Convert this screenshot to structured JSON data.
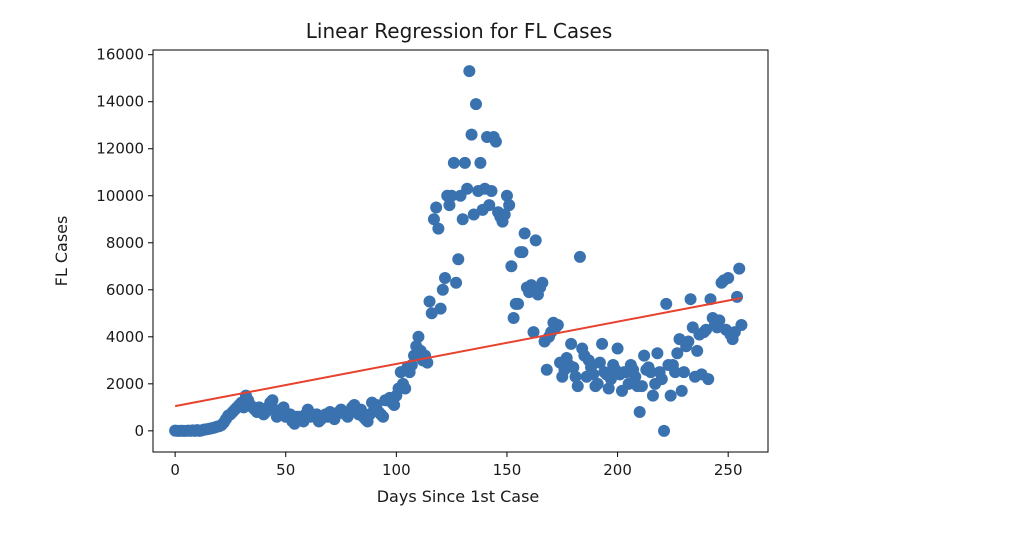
{
  "chart_data": {
    "type": "scatter",
    "title": "Linear Regression for FL Cases",
    "xlabel": "Days Since 1st Case",
    "ylabel": "FL Cases",
    "xlim": [
      -10,
      268
    ],
    "ylim": [
      -900,
      16200
    ],
    "xticks": [
      0,
      50,
      100,
      150,
      200,
      250
    ],
    "yticks": [
      0,
      2000,
      4000,
      6000,
      8000,
      10000,
      12000,
      14000,
      16000
    ],
    "grid": false,
    "colors": {
      "points": "#3a72b0",
      "regression": "#e8412e",
      "axes": "#000000"
    },
    "series": [
      {
        "kind": "scatter",
        "x": [
          0,
          1,
          2,
          3,
          4,
          5,
          6,
          7,
          8,
          9,
          10,
          11,
          12,
          13,
          14,
          15,
          16,
          17,
          18,
          19,
          20,
          21,
          22,
          23,
          24,
          25,
          26,
          27,
          28,
          29,
          30,
          31,
          32,
          33,
          34,
          35,
          36,
          37,
          38,
          39,
          40,
          41,
          42,
          43,
          44,
          45,
          46,
          47,
          48,
          49,
          50,
          51,
          52,
          53,
          54,
          55,
          56,
          57,
          58,
          59,
          60,
          61,
          62,
          63,
          64,
          65,
          66,
          67,
          68,
          69,
          70,
          71,
          72,
          73,
          74,
          75,
          76,
          77,
          78,
          79,
          80,
          81,
          82,
          83,
          84,
          85,
          86,
          87,
          88,
          89,
          90,
          91,
          92,
          93,
          94,
          95,
          96,
          97,
          98,
          99,
          100,
          101,
          102,
          103,
          104,
          105,
          106,
          107,
          108,
          109,
          110,
          111,
          112,
          113,
          114,
          115,
          116,
          117,
          118,
          119,
          120,
          121,
          122,
          123,
          124,
          125,
          126,
          127,
          128,
          129,
          130,
          131,
          132,
          133,
          134,
          135,
          136,
          137,
          138,
          139,
          140,
          141,
          142,
          143,
          144,
          145,
          146,
          147,
          148,
          149,
          150,
          151,
          152,
          153,
          154,
          155,
          156,
          157,
          158,
          159,
          160,
          161,
          162,
          163,
          164,
          165,
          166,
          167,
          168,
          169,
          170,
          171,
          172,
          173,
          174,
          175,
          176,
          177,
          178,
          179,
          180,
          181,
          182,
          183,
          184,
          185,
          186,
          187,
          188,
          189,
          190,
          191,
          192,
          193,
          194,
          195,
          196,
          197,
          198,
          199,
          200,
          201,
          202,
          203,
          204,
          205,
          206,
          207,
          208,
          209,
          210,
          211,
          212,
          213,
          214,
          215,
          216,
          217,
          218,
          219,
          220,
          221,
          222,
          223,
          224,
          225,
          226,
          227,
          228,
          229,
          230,
          231,
          232,
          233,
          234,
          235,
          236,
          237,
          238,
          239,
          240,
          241,
          242,
          243,
          244,
          245,
          246,
          247,
          248,
          249,
          250,
          251,
          252,
          253,
          254,
          255,
          256
        ],
        "y": [
          10,
          0,
          0,
          5,
          0,
          0,
          10,
          0,
          20,
          0,
          30,
          0,
          20,
          50,
          60,
          80,
          100,
          120,
          150,
          180,
          200,
          250,
          350,
          500,
          650,
          700,
          800,
          900,
          1000,
          1100,
          1200,
          1000,
          1500,
          1300,
          1100,
          1000,
          900,
          800,
          1000,
          900,
          700,
          800,
          1000,
          1200,
          1300,
          900,
          600,
          700,
          800,
          1000,
          600,
          700,
          700,
          400,
          300,
          600,
          600,
          500,
          400,
          700,
          900,
          600,
          700,
          600,
          700,
          400,
          500,
          600,
          700,
          600,
          800,
          600,
          500,
          700,
          800,
          900,
          800,
          700,
          600,
          800,
          1000,
          1100,
          800,
          700,
          900,
          600,
          500,
          400,
          700,
          1200,
          900,
          1100,
          800,
          700,
          600,
          1300,
          1300,
          1400,
          1200,
          1100,
          1500,
          1800,
          2500,
          2000,
          1800,
          2700,
          2500,
          2800,
          3200,
          3600,
          4000,
          3400,
          3000,
          3200,
          2900,
          5500,
          5000,
          9000,
          9500,
          8600,
          5200,
          6000,
          6500,
          10000,
          9600,
          10000,
          11400,
          6300,
          7300,
          10000,
          9000,
          11400,
          10300,
          15300,
          12600,
          9200,
          13900,
          10200,
          11400,
          9400,
          10300,
          12500,
          9600,
          10200,
          12500,
          12300,
          9300,
          9100,
          8900,
          9200,
          10000,
          9600,
          7000,
          4800,
          5400,
          5400,
          7600,
          7600,
          8400,
          6100,
          5900,
          6200,
          4200,
          8100,
          5800,
          6100,
          6300,
          3800,
          2600,
          4000,
          4200,
          4600,
          4400,
          4500,
          2900,
          2300,
          2600,
          3100,
          2800,
          3700,
          2700,
          2300,
          1900,
          7400,
          3500,
          3200,
          2300,
          3000,
          2700,
          2400,
          1900,
          2000,
          2900,
          3700,
          2500,
          2400,
          1800,
          2200,
          2800,
          2600,
          3500,
          2400,
          1700,
          2500,
          2500,
          2000,
          2800,
          2600,
          2300,
          1900,
          800,
          1900,
          3200,
          2600,
          2700,
          2500,
          1500,
          2000,
          3300,
          2500,
          2200,
          0,
          5400,
          2800,
          1500,
          2800,
          2500,
          3300,
          3900,
          1700,
          2500,
          3600,
          3800,
          5600,
          4400,
          2300,
          3400,
          4100,
          2400,
          4200,
          4300,
          2200,
          5600,
          4800,
          4500,
          4400,
          4700,
          6300,
          6400,
          4300,
          6500,
          4100,
          3900,
          4200,
          5700,
          6900,
          4500
        ]
      },
      {
        "kind": "regression-line",
        "x": [
          0,
          256
        ],
        "y": [
          1050,
          5650
        ]
      }
    ]
  }
}
